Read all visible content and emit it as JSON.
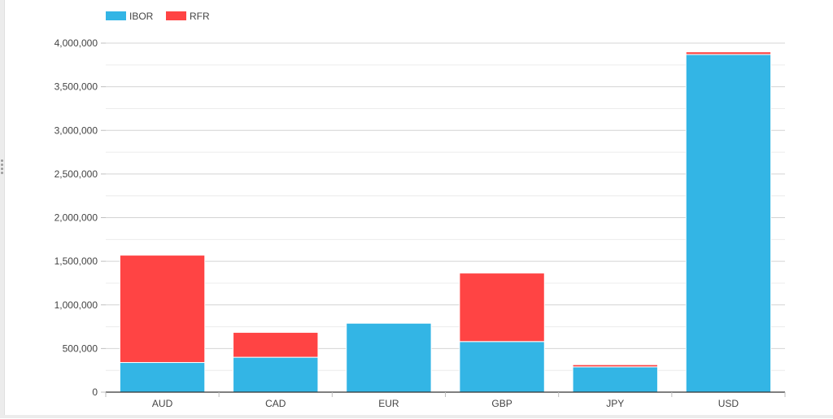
{
  "chart_data": {
    "type": "bar",
    "stacked": true,
    "categories": [
      "AUD",
      "CAD",
      "EUR",
      "GBP",
      "JPY",
      "USD"
    ],
    "series": [
      {
        "name": "IBOR",
        "color": "#33b5e5",
        "values": [
          340000,
          400000,
          790000,
          580000,
          290000,
          3870000
        ]
      },
      {
        "name": "RFR",
        "color": "#ff4444",
        "values": [
          1230000,
          285000,
          0,
          785000,
          25000,
          30000
        ]
      }
    ],
    "ylim": [
      0,
      4000000
    ],
    "yticks": [
      0,
      500000,
      1000000,
      1500000,
      2000000,
      2500000,
      3000000,
      3500000,
      4000000
    ],
    "ytick_labels": [
      "0",
      "500,000",
      "1,000,000",
      "1,500,000",
      "2,000,000",
      "2,500,000",
      "3,000,000",
      "3,500,000",
      "4,000,000"
    ],
    "title": "",
    "xlabel": "",
    "ylabel": "",
    "legend_position": "top-left",
    "grid": true,
    "colors": {
      "ibor": "#33b5e5",
      "rfr": "#ff4444",
      "grid": "#d9d9d9",
      "axis": "#333333",
      "text": "#444444"
    }
  }
}
